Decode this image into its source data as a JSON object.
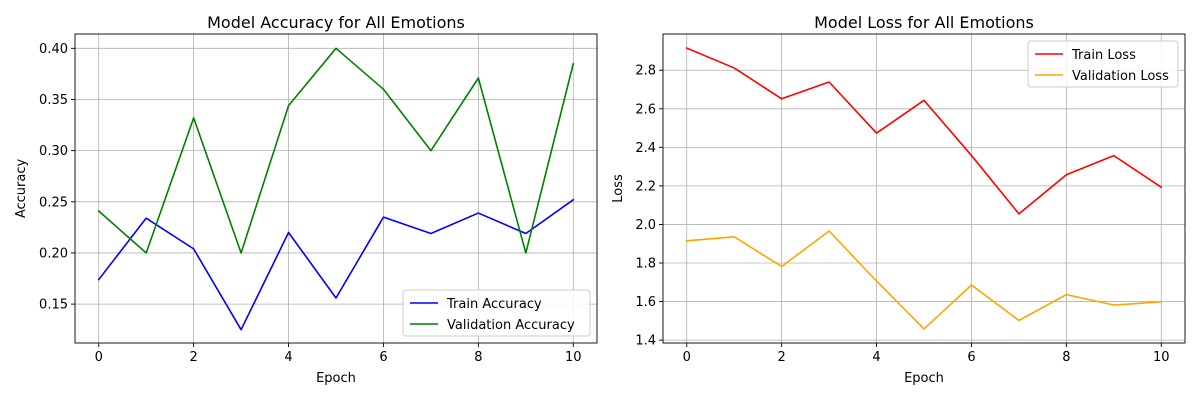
{
  "chart_data": [
    {
      "type": "line",
      "title": "Model Accuracy for All Emotions",
      "xlabel": "Epoch",
      "ylabel": "Accuracy",
      "x": [
        0,
        1,
        2,
        3,
        4,
        5,
        6,
        7,
        8,
        9,
        10
      ],
      "xlim": [
        -0.5,
        10.5
      ],
      "ylim": [
        0.112,
        0.414
      ],
      "xticks": [
        "0",
        "2",
        "4",
        "6",
        "8",
        "10"
      ],
      "yticks": [
        "0.15",
        "0.20",
        "0.25",
        "0.30",
        "0.35",
        "0.40"
      ],
      "grid": true,
      "legend_position": "lower right",
      "series": [
        {
          "name": "Train Accuracy",
          "color": "#0000ff",
          "values": [
            0.174,
            0.234,
            0.204,
            0.125,
            0.22,
            0.156,
            0.235,
            0.219,
            0.239,
            0.219,
            0.252
          ]
        },
        {
          "name": "Validation Accuracy",
          "color": "#008000",
          "values": [
            0.241,
            0.2,
            0.332,
            0.2,
            0.344,
            0.4,
            0.36,
            0.3,
            0.371,
            0.2,
            0.385
          ]
        }
      ]
    },
    {
      "type": "line",
      "title": "Model Loss for All Emotions",
      "xlabel": "Epoch",
      "ylabel": "Loss",
      "x": [
        0,
        1,
        2,
        3,
        4,
        5,
        6,
        7,
        8,
        9,
        10
      ],
      "xlim": [
        -0.5,
        10.5
      ],
      "ylim": [
        1.385,
        2.988
      ],
      "xticks": [
        "0",
        "2",
        "4",
        "6",
        "8",
        "10"
      ],
      "yticks": [
        "1.4",
        "1.6",
        "1.8",
        "2.0",
        "2.2",
        "2.4",
        "2.6",
        "2.8"
      ],
      "grid": true,
      "legend_position": "upper right",
      "series": [
        {
          "name": "Train Loss",
          "color": "#ff0000",
          "values": [
            2.915,
            2.812,
            2.652,
            2.739,
            2.474,
            2.644,
            2.358,
            2.055,
            2.258,
            2.357,
            2.193
          ]
        },
        {
          "name": "Validation Loss",
          "color": "#ffa500",
          "values": [
            1.915,
            1.936,
            1.782,
            1.966,
            1.706,
            1.458,
            1.686,
            1.502,
            1.636,
            1.582,
            1.598
          ]
        }
      ]
    }
  ]
}
